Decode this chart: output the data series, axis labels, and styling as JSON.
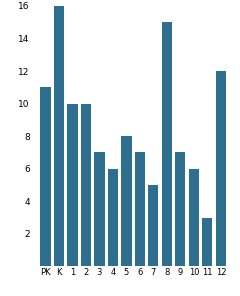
{
  "categories": [
    "PK",
    "K",
    "1",
    "2",
    "3",
    "4",
    "5",
    "6",
    "7",
    "8",
    "9",
    "10",
    "11",
    "12"
  ],
  "values": [
    11,
    16,
    10,
    10,
    7,
    6,
    8,
    7,
    5,
    15,
    7,
    6,
    3,
    12
  ],
  "bar_color": "#2e6e8e",
  "ylim": [
    0,
    16
  ],
  "yticks": [
    2,
    4,
    6,
    8,
    10,
    12,
    14,
    16
  ],
  "background_color": "#ffffff",
  "figsize": [
    2.4,
    2.96
  ],
  "dpi": 100
}
